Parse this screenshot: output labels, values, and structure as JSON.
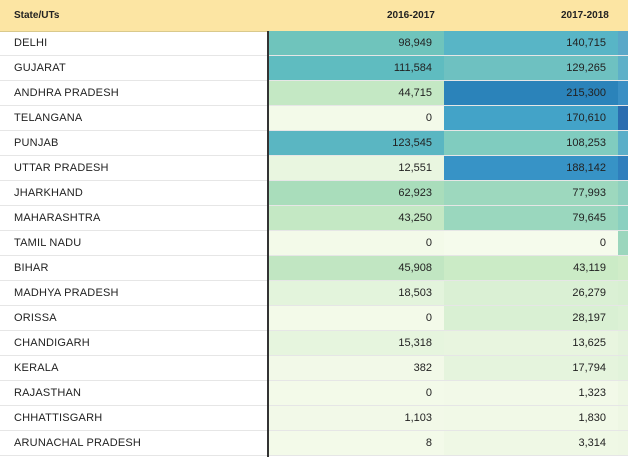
{
  "table": {
    "columns": [
      "State/UTs",
      "2016-2017",
      "2017-2018"
    ],
    "rows": [
      {
        "state": "DELHI",
        "y2016_17": "98,949",
        "y2017_18": "140,715",
        "c1": "#6fc4bc",
        "c2": "#58b5c6",
        "c3": "#5aa8c8"
      },
      {
        "state": "GUJARAT",
        "y2016_17": "111,584",
        "y2017_18": "129,265",
        "c1": "#5fbcc0",
        "c2": "#6ec1c1",
        "c3": "#5eb0c8"
      },
      {
        "state": "ANDHRA PRADESH",
        "y2016_17": "44,715",
        "y2017_18": "215,300",
        "c1": "#c4e8c4",
        "c2": "#2b83ba",
        "c3": "#3a8fc4"
      },
      {
        "state": "TELANGANA",
        "y2016_17": "0",
        "y2017_18": "170,610",
        "c1": "#f3fae9",
        "c2": "#43a3c8",
        "c3": "#2a6db0"
      },
      {
        "state": "PUNJAB",
        "y2016_17": "123,545",
        "y2017_18": "108,253",
        "c1": "#5ab6c2",
        "c2": "#80ccbf",
        "c3": "#5aaec8"
      },
      {
        "state": "UTTAR PRADESH",
        "y2016_17": "12,551",
        "y2017_18": "188,142",
        "c1": "#e9f6e0",
        "c2": "#3793c6",
        "c3": "#2f7fbd"
      },
      {
        "state": "JHARKHAND",
        "y2016_17": "62,923",
        "y2017_18": "77,993",
        "c1": "#a9ddbb",
        "c2": "#9dd8be",
        "c3": "#8fd0bf"
      },
      {
        "state": "MAHARASHTRA",
        "y2016_17": "43,250",
        "y2017_18": "79,645",
        "c1": "#c4e8c4",
        "c2": "#9ad7be",
        "c3": "#8ad0c0"
      },
      {
        "state": "TAMIL NADU",
        "y2016_17": "0",
        "y2017_18": "0",
        "c1": "#f3fae9",
        "c2": "#f5fbec",
        "c3": "#9bd6bd"
      },
      {
        "state": "BIHAR",
        "y2016_17": "45,908",
        "y2017_18": "43,119",
        "c1": "#c1e6c2",
        "c2": "#cbebc6",
        "c3": "#d0ecc8"
      },
      {
        "state": "MADHYA PRADESH",
        "y2016_17": "18,503",
        "y2017_18": "26,279",
        "c1": "#e3f4dc",
        "c2": "#daf0d4",
        "c3": "#d8efd2"
      },
      {
        "state": "ORISSA",
        "y2016_17": "0",
        "y2017_18": "28,197",
        "c1": "#f3fae9",
        "c2": "#d9f0d3",
        "c3": "#dcf1d5"
      },
      {
        "state": "CHANDIGARH",
        "y2016_17": "15,318",
        "y2017_18": "13,625",
        "c1": "#e6f5de",
        "c2": "#e8f5df",
        "c3": "#e4f3dc"
      },
      {
        "state": "KERALA",
        "y2016_17": "382",
        "y2017_18": "17,794",
        "c1": "#f2f9e8",
        "c2": "#e5f4dd",
        "c3": "#e2f3db"
      },
      {
        "state": "RAJASTHAN",
        "y2016_17": "0",
        "y2017_18": "1,323",
        "c1": "#f3fae9",
        "c2": "#f2f9e8",
        "c3": "#eef7e4"
      },
      {
        "state": "CHHATTISGARH",
        "y2016_17": "1,103",
        "y2017_18": "1,830",
        "c1": "#f2f9e8",
        "c2": "#f1f9e7",
        "c3": "#eef7e4"
      },
      {
        "state": "ARUNACHAL PRADESH",
        "y2016_17": "8",
        "y2017_18": "3,314",
        "c1": "#f3fae9",
        "c2": "#eff8e5",
        "c3": "#eef7e4"
      }
    ]
  }
}
